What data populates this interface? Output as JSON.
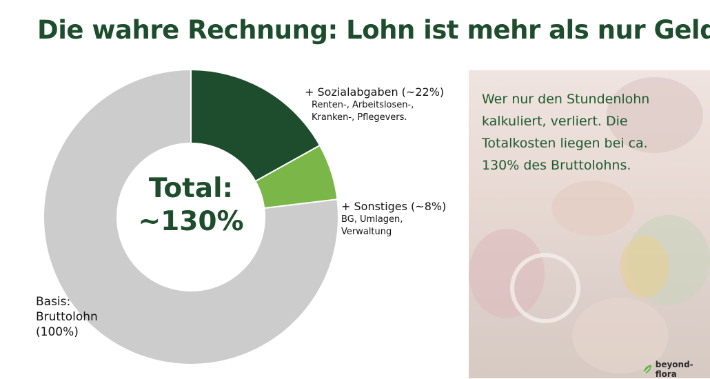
{
  "title": "Die wahre Rechnung: Lohn ist mehr als nur Geld.",
  "chart_data": {
    "type": "pie",
    "donut": true,
    "slices": [
      {
        "label": "+ Sozialabgaben (~22%)",
        "value": 22,
        "color": "#1d4d2c",
        "detail": [
          "Renten-, Arbeitslosen-,",
          "Kranken-, Pflegevers."
        ]
      },
      {
        "label": "+ Sonstiges (~8%)",
        "value": 8,
        "color": "#7ab648",
        "detail": [
          "BG, Umlagen,",
          "Verwaltung"
        ]
      },
      {
        "label": "Basis:",
        "value": 100,
        "color": "#cccccc",
        "detail": [
          "Bruttolohn",
          "(100%)"
        ]
      }
    ],
    "center": [
      "Total:",
      "~130%"
    ]
  },
  "note": [
    "Wer nur den Stundenlohn",
    "kalkuliert, verliert. Die",
    "Totalkosten liegen bei ca.",
    "130% des Bruttolohns."
  ],
  "logo": {
    "text": "beyond-flora",
    "icon": "leaf-icon",
    "color": "#6ab04c"
  }
}
